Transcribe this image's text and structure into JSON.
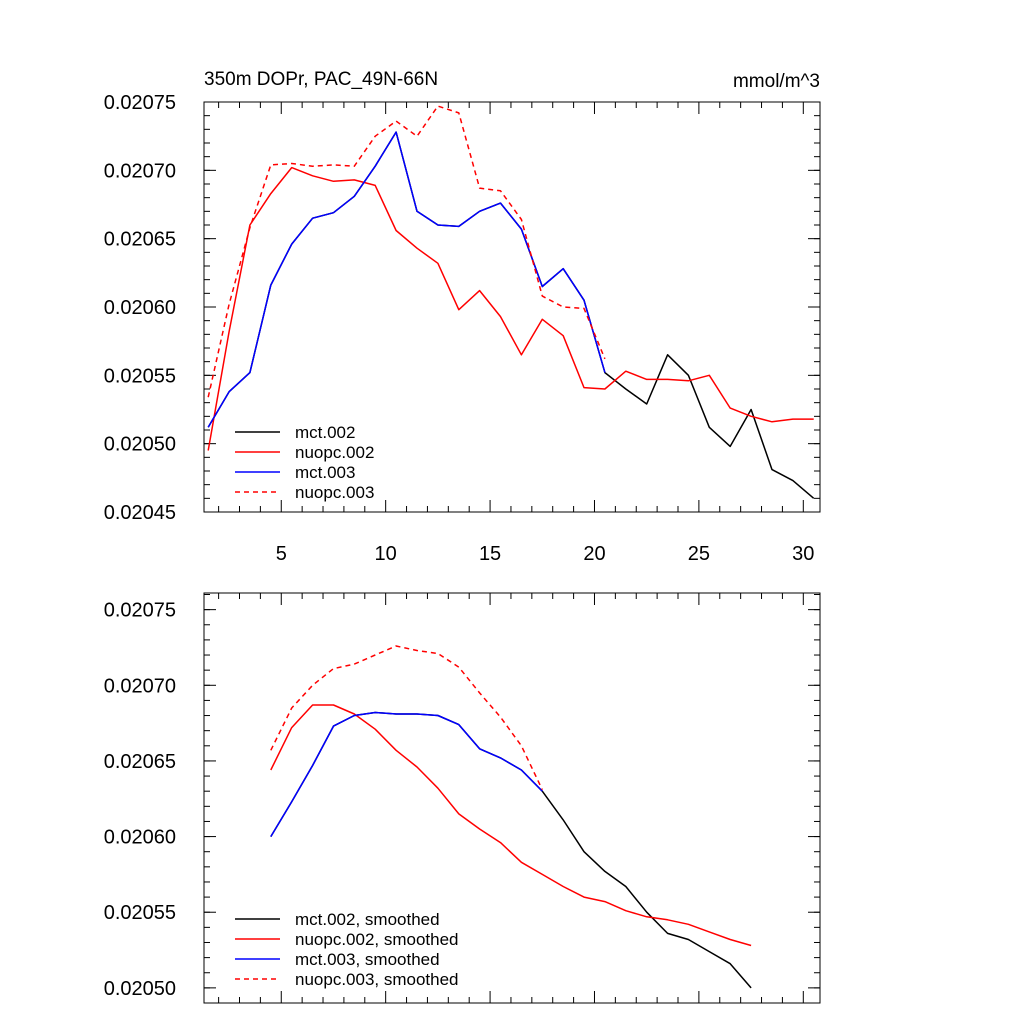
{
  "chart_data": [
    {
      "type": "line",
      "title_left": "350m DOPr, PAC_49N-66N",
      "title_right": "mmol/m^3",
      "xlim": [
        1.3,
        30.8
      ],
      "ylim": [
        0.02045,
        0.02075
      ],
      "xticks": [
        5,
        10,
        15,
        20,
        25,
        30
      ],
      "xtick_labels": [
        "5",
        "10",
        "15",
        "20",
        "25",
        "30"
      ],
      "yticks": [
        0.02045,
        0.0205,
        0.02055,
        0.0206,
        0.02065,
        0.0207,
        0.02075
      ],
      "ytick_labels": [
        "0.02045",
        "0.02050",
        "0.02055",
        "0.02060",
        "0.02065",
        "0.02070",
        "0.02075"
      ],
      "legend": "lower-left",
      "series": [
        {
          "name": "mct.002",
          "color": "#000000",
          "dash": "solid",
          "x": [
            1.5,
            2.5,
            3.5,
            4.5,
            5.5,
            6.5,
            7.5,
            8.5,
            9.5,
            10.5,
            11.5,
            12.5,
            13.5,
            14.5,
            15.5,
            16.5,
            17.5,
            18.5,
            19.5,
            20.5,
            21.5,
            22.5,
            23.5,
            24.5,
            25.5,
            26.5,
            27.5,
            28.5,
            29.5,
            30.5
          ],
          "y": [
            0.020512,
            0.020538,
            0.020552,
            0.020616,
            0.020646,
            0.020665,
            0.020669,
            0.020681,
            0.020703,
            0.020728,
            0.02067,
            0.02066,
            0.020659,
            0.02067,
            0.020676,
            0.020657,
            0.020615,
            0.020628,
            0.020605,
            0.020552,
            0.02054,
            0.020529,
            0.020565,
            0.02055,
            0.020512,
            0.020498,
            0.020525,
            0.020481,
            0.020473,
            0.02046
          ]
        },
        {
          "name": "nuopc.002",
          "color": "#ff0000",
          "dash": "solid",
          "x": [
            1.5,
            2.5,
            3.5,
            4.5,
            5.5,
            6.5,
            7.5,
            8.5,
            9.5,
            10.5,
            11.5,
            12.5,
            13.5,
            14.5,
            15.5,
            16.5,
            17.5,
            18.5,
            19.5,
            20.5,
            21.5,
            22.5,
            23.5,
            24.5,
            25.5,
            26.5,
            27.5,
            28.5,
            29.5,
            30.5
          ],
          "y": [
            0.020495,
            0.020582,
            0.02066,
            0.020683,
            0.020702,
            0.020696,
            0.020692,
            0.020693,
            0.020689,
            0.020656,
            0.020643,
            0.020632,
            0.020598,
            0.020612,
            0.020593,
            0.020565,
            0.020591,
            0.020579,
            0.020541,
            0.02054,
            0.020553,
            0.020547,
            0.020547,
            0.020546,
            0.02055,
            0.020526,
            0.02052,
            0.020516,
            0.020518,
            0.020518
          ]
        },
        {
          "name": "mct.003",
          "color": "#0000ff",
          "dash": "solid",
          "x": [
            1.5,
            2.5,
            3.5,
            4.5,
            5.5,
            6.5,
            7.5,
            8.5,
            9.5,
            10.5,
            11.5,
            12.5,
            13.5,
            14.5,
            15.5,
            16.5,
            17.5,
            18.5,
            19.5,
            20.5
          ],
          "y": [
            0.020512,
            0.020538,
            0.020552,
            0.020616,
            0.020646,
            0.020665,
            0.020669,
            0.020681,
            0.020703,
            0.020728,
            0.02067,
            0.02066,
            0.020659,
            0.02067,
            0.020676,
            0.020657,
            0.020615,
            0.020628,
            0.020605,
            0.020552
          ]
        },
        {
          "name": "nuopc.003",
          "color": "#ff0000",
          "dash": "dashed",
          "x": [
            1.5,
            2.5,
            3.5,
            4.5,
            5.5,
            6.5,
            7.5,
            8.5,
            9.5,
            10.5,
            11.5,
            12.5,
            13.5,
            14.5,
            15.5,
            16.5,
            17.5,
            18.5,
            19.5,
            20.5
          ],
          "y": [
            0.020534,
            0.020602,
            0.020658,
            0.020704,
            0.020705,
            0.020703,
            0.020704,
            0.020703,
            0.020725,
            0.020736,
            0.020725,
            0.020747,
            0.020742,
            0.020687,
            0.020685,
            0.020664,
            0.020608,
            0.0206,
            0.020599,
            0.020562
          ]
        }
      ]
    },
    {
      "type": "line",
      "xlim": [
        1.3,
        30.8
      ],
      "ylim": [
        0.02049,
        0.020761
      ],
      "xticks": [
        5,
        10,
        15,
        20,
        25,
        30
      ],
      "xtick_labels": [],
      "yticks": [
        0.0205,
        0.02055,
        0.0206,
        0.02065,
        0.0207,
        0.02075
      ],
      "ytick_labels": [
        "0.02050",
        "0.02055",
        "0.02060",
        "0.02065",
        "0.02070",
        "0.02075"
      ],
      "legend": "lower-left",
      "series": [
        {
          "name": "mct.002, smoothed",
          "color": "#000000",
          "dash": "solid",
          "x": [
            4.5,
            5.5,
            6.5,
            7.5,
            8.5,
            9.5,
            10.5,
            11.5,
            12.5,
            13.5,
            14.5,
            15.5,
            16.5,
            17.5,
            18.5,
            19.5,
            20.5,
            21.5,
            22.5,
            23.5,
            24.5,
            25.5,
            26.5,
            27.5
          ],
          "y": [
            0.0206,
            0.020623,
            0.020647,
            0.020673,
            0.02068,
            0.020682,
            0.020681,
            0.020681,
            0.02068,
            0.020674,
            0.020658,
            0.020652,
            0.020644,
            0.02063,
            0.020611,
            0.02059,
            0.020577,
            0.020567,
            0.02055,
            0.020536,
            0.020532,
            0.020524,
            0.020516,
            0.0205
          ]
        },
        {
          "name": "nuopc.002, smoothed",
          "color": "#ff0000",
          "dash": "solid",
          "x": [
            4.5,
            5.5,
            6.5,
            7.5,
            8.5,
            9.5,
            10.5,
            11.5,
            12.5,
            13.5,
            14.5,
            15.5,
            16.5,
            17.5,
            18.5,
            19.5,
            20.5,
            21.5,
            22.5,
            23.5,
            24.5,
            25.5,
            26.5,
            27.5
          ],
          "y": [
            0.020644,
            0.020672,
            0.020687,
            0.020687,
            0.020681,
            0.020671,
            0.020657,
            0.020646,
            0.020632,
            0.020615,
            0.020605,
            0.020596,
            0.020583,
            0.020575,
            0.020567,
            0.02056,
            0.020557,
            0.020551,
            0.020547,
            0.020545,
            0.020542,
            0.020537,
            0.020532,
            0.020528
          ]
        },
        {
          "name": "mct.003, smoothed",
          "color": "#0000ff",
          "dash": "solid",
          "x": [
            4.5,
            5.5,
            6.5,
            7.5,
            8.5,
            9.5,
            10.5,
            11.5,
            12.5,
            13.5,
            14.5,
            15.5,
            16.5,
            17.5
          ],
          "y": [
            0.0206,
            0.020623,
            0.020647,
            0.020673,
            0.02068,
            0.020682,
            0.020681,
            0.020681,
            0.02068,
            0.020674,
            0.020658,
            0.020652,
            0.020644,
            0.02063
          ]
        },
        {
          "name": "nuopc.003, smoothed",
          "color": "#ff0000",
          "dash": "dashed",
          "x": [
            4.5,
            5.5,
            6.5,
            7.5,
            8.5,
            9.5,
            10.5,
            11.5,
            12.5,
            13.5,
            14.5,
            15.5,
            16.5,
            17.5
          ],
          "y": [
            0.020657,
            0.020685,
            0.0207,
            0.020711,
            0.020714,
            0.02072,
            0.020726,
            0.020723,
            0.020721,
            0.020712,
            0.020695,
            0.020679,
            0.02066,
            0.020631
          ]
        }
      ]
    }
  ]
}
